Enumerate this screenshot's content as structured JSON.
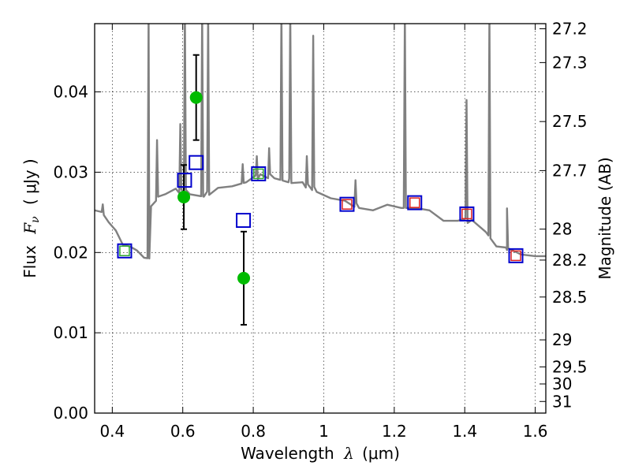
{
  "chart_data": {
    "type": "scatter",
    "title": "",
    "xlabel": "Wavelength  λ (μm)",
    "ylabel": "Flux  F_ν  ( μJy )",
    "ylabel_parts": {
      "prefix": "Flux",
      "symbol": "F",
      "subscript": "ν",
      "unit": "( μJy )"
    },
    "xlabel_parts": {
      "prefix": "Wavelength",
      "symbol": "λ",
      "unit": "(μm)"
    },
    "right_ylabel": "Magnitude (AB)",
    "xlim": [
      0.35,
      1.63
    ],
    "ylim": [
      0.0,
      0.0485
    ],
    "grid": true,
    "x_ticks": [
      0.4,
      0.6,
      0.8,
      1.0,
      1.2,
      1.4,
      1.6
    ],
    "x_tick_labels": [
      "0.4",
      "0.6",
      "0.8",
      "1",
      "1.2",
      "1.4",
      "1.6"
    ],
    "y_ticks": [
      0.0,
      0.01,
      0.02,
      0.03,
      0.04
    ],
    "y_tick_labels": [
      "0.00",
      "0.01",
      "0.02",
      "0.03",
      "0.04"
    ],
    "right_y_ticks": [
      27.2,
      27.3,
      27.5,
      27.7,
      28,
      28.2,
      28.5,
      29,
      29.5,
      30,
      31
    ],
    "right_y_tick_labels": [
      "27.2",
      "27.3",
      "27.5",
      "27.7",
      "28",
      "28.2",
      "28.5",
      "29",
      "29.5",
      "30",
      "31"
    ],
    "colors": {
      "model": "#808080",
      "observed": "#00bb00",
      "model_phot": "#0000cc",
      "box_green": "#33aa33",
      "box_red": "#dd2222"
    },
    "series": [
      {
        "name": "model spectrum",
        "kind": "line",
        "continuum": [
          [
            0.35,
            0.025
          ],
          [
            0.37,
            0.0253
          ],
          [
            0.39,
            0.024
          ],
          [
            0.41,
            0.0225
          ],
          [
            0.43,
            0.0212
          ],
          [
            0.45,
            0.021
          ],
          [
            0.47,
            0.02
          ],
          [
            0.49,
            0.0196
          ],
          [
            0.505,
            0.0195
          ],
          [
            0.51,
            0.0255
          ],
          [
            0.53,
            0.0272
          ],
          [
            0.55,
            0.0275
          ],
          [
            0.58,
            0.0277
          ],
          [
            0.62,
            0.0275
          ],
          [
            0.66,
            0.0272
          ],
          [
            0.7,
            0.0278
          ],
          [
            0.74,
            0.0285
          ],
          [
            0.78,
            0.029
          ],
          [
            0.82,
            0.0295
          ],
          [
            0.86,
            0.0295
          ],
          [
            0.9,
            0.029
          ],
          [
            0.94,
            0.0285
          ],
          [
            0.98,
            0.0278
          ],
          [
            1.02,
            0.027
          ],
          [
            1.06,
            0.0262
          ],
          [
            1.1,
            0.0258
          ],
          [
            1.14,
            0.0255
          ],
          [
            1.18,
            0.0257
          ],
          [
            1.22,
            0.0258
          ],
          [
            1.26,
            0.0258
          ],
          [
            1.3,
            0.025
          ],
          [
            1.34,
            0.0242
          ],
          [
            1.38,
            0.0242
          ],
          [
            1.42,
            0.0238
          ],
          [
            1.46,
            0.0228
          ],
          [
            1.49,
            0.021
          ],
          [
            1.52,
            0.0203
          ],
          [
            1.56,
            0.02
          ],
          [
            1.6,
            0.0198
          ],
          [
            1.63,
            0.0193
          ]
        ],
        "emission_lines": [
          [
            0.373,
            0.026
          ],
          [
            0.503,
            0.05
          ],
          [
            0.527,
            0.034
          ],
          [
            0.593,
            0.036
          ],
          [
            0.606,
            0.05
          ],
          [
            0.655,
            0.05
          ],
          [
            0.672,
            0.05
          ],
          [
            0.77,
            0.031
          ],
          [
            0.81,
            0.032
          ],
          [
            0.845,
            0.033
          ],
          [
            0.88,
            0.05
          ],
          [
            0.905,
            0.05
          ],
          [
            0.952,
            0.032
          ],
          [
            0.97,
            0.047
          ],
          [
            1.09,
            0.029
          ],
          [
            1.23,
            0.05
          ],
          [
            1.405,
            0.039
          ],
          [
            1.47,
            0.05
          ],
          [
            1.52,
            0.0255
          ]
        ]
      },
      {
        "name": "observed photometry",
        "kind": "points_with_errors",
        "points": [
          {
            "x": 0.603,
            "y": 0.0269,
            "yerr": 0.004
          },
          {
            "x": 0.638,
            "y": 0.0393,
            "yerr": 0.0053
          },
          {
            "x": 0.773,
            "y": 0.0168,
            "yerr": 0.0058
          }
        ]
      },
      {
        "name": "model photometry",
        "kind": "open_squares",
        "points": [
          {
            "x": 0.435,
            "y": 0.0202,
            "inner": "green"
          },
          {
            "x": 0.605,
            "y": 0.029,
            "inner": "none"
          },
          {
            "x": 0.638,
            "y": 0.0312,
            "inner": "none"
          },
          {
            "x": 0.772,
            "y": 0.024,
            "inner": "none"
          },
          {
            "x": 0.815,
            "y": 0.0298,
            "inner": "green"
          },
          {
            "x": 1.066,
            "y": 0.026,
            "inner": "red"
          },
          {
            "x": 1.258,
            "y": 0.0262,
            "inner": "red"
          },
          {
            "x": 1.406,
            "y": 0.0248,
            "inner": "red"
          },
          {
            "x": 1.545,
            "y": 0.0196,
            "inner": "red"
          }
        ]
      }
    ]
  }
}
